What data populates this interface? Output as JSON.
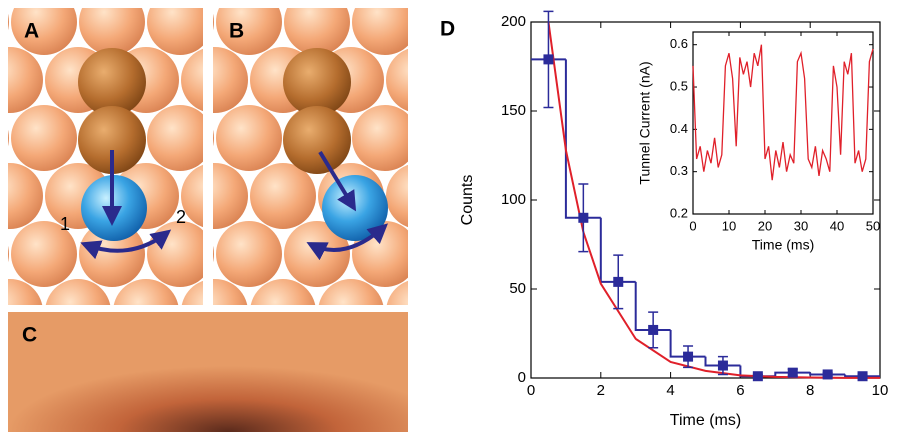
{
  "panels": {
    "a": {
      "label": "A",
      "site_labels": [
        "1",
        "2"
      ]
    },
    "b": {
      "label": "B"
    },
    "c": {
      "label": "C"
    }
  },
  "chart_data": [
    {
      "type": "histogram",
      "panel_label": "D",
      "xlabel": "Time (ms)",
      "ylabel": "Counts",
      "xlim": [
        0,
        10
      ],
      "ylim": [
        0,
        200
      ],
      "xticks": [
        0,
        2,
        4,
        6,
        8,
        10
      ],
      "yticks": [
        0,
        50,
        100,
        150,
        200
      ],
      "color": "#2b2b9a",
      "bins": [
        0,
        1,
        2,
        3,
        4,
        5,
        6,
        7,
        8,
        9,
        10
      ],
      "values": [
        179,
        90,
        54,
        27,
        12,
        7,
        1,
        3,
        2,
        1
      ],
      "errors": [
        27,
        19,
        15,
        10,
        6,
        5,
        1,
        2,
        1,
        1
      ],
      "fit": {
        "color": "#e0202a",
        "x": [
          0.5,
          1,
          1.5,
          2,
          3,
          4,
          5,
          6,
          7,
          8,
          9,
          10
        ],
        "values": [
          200,
          128,
          82,
          53,
          22,
          9,
          4,
          1.5,
          0.6,
          0.3,
          0.1,
          0.05
        ]
      }
    },
    {
      "type": "line",
      "xlabel": "Time (ms)",
      "ylabel": "Tunnel Current (nA)",
      "xlim": [
        0,
        50
      ],
      "ylim": [
        0.2,
        0.63
      ],
      "xticks": [
        0,
        10,
        20,
        30,
        40,
        50
      ],
      "yticks": [
        0.2,
        0.3,
        0.4,
        0.5,
        0.6
      ],
      "series": [
        {
          "color": "#e0202a",
          "x": [
            0,
            1,
            2,
            3,
            4,
            5,
            6,
            7,
            8,
            9,
            10,
            11,
            12,
            13,
            14,
            15,
            16,
            17,
            18,
            19,
            20,
            21,
            22,
            23,
            24,
            25,
            26,
            27,
            28,
            29,
            30,
            31,
            32,
            33,
            34,
            35,
            36,
            37,
            38,
            39,
            40,
            41,
            42,
            43,
            44,
            45,
            46,
            47,
            48,
            49,
            50
          ],
          "values": [
            0.55,
            0.33,
            0.36,
            0.3,
            0.35,
            0.32,
            0.38,
            0.31,
            0.34,
            0.55,
            0.58,
            0.52,
            0.36,
            0.57,
            0.53,
            0.56,
            0.5,
            0.58,
            0.55,
            0.6,
            0.33,
            0.36,
            0.28,
            0.35,
            0.31,
            0.37,
            0.3,
            0.34,
            0.32,
            0.56,
            0.58,
            0.52,
            0.33,
            0.31,
            0.36,
            0.29,
            0.35,
            0.33,
            0.3,
            0.55,
            0.5,
            0.34,
            0.56,
            0.53,
            0.58,
            0.32,
            0.35,
            0.3,
            0.33,
            0.56,
            0.59
          ]
        }
      ]
    }
  ]
}
